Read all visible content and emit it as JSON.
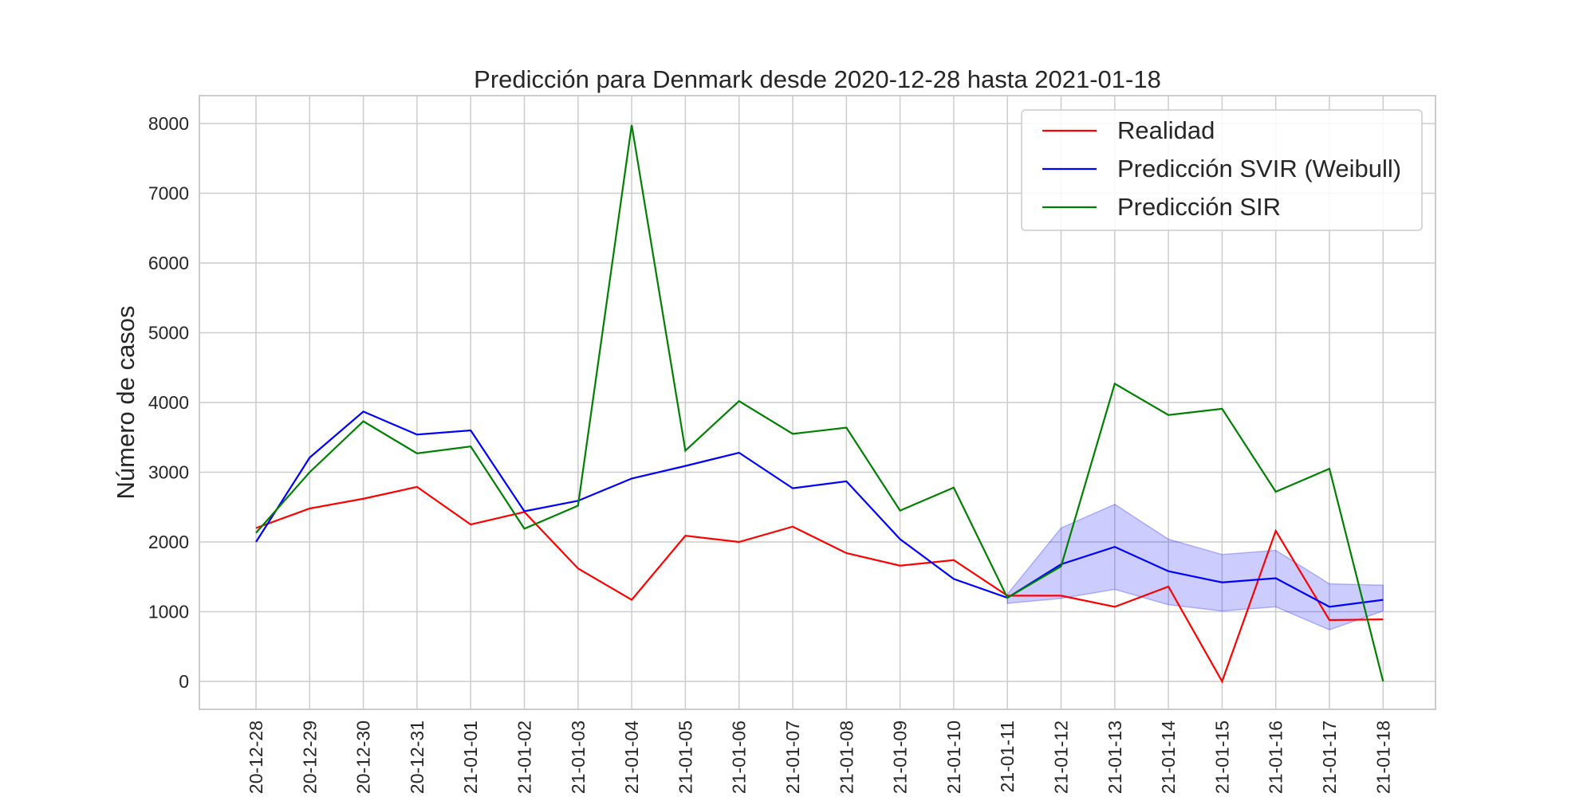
{
  "chart_data": {
    "type": "line",
    "title": "Predicción para Denmark desde 2020-12-28 hasta 2021-01-18",
    "xlabel": "",
    "ylabel": "Número de casos",
    "x": [
      "2020-12-28",
      "2020-12-29",
      "2020-12-30",
      "2020-12-31",
      "2021-01-01",
      "2021-01-02",
      "2021-01-03",
      "2021-01-04",
      "2021-01-05",
      "2021-01-06",
      "2021-01-07",
      "2021-01-08",
      "2021-01-09",
      "2021-01-10",
      "2021-01-11",
      "2021-01-12",
      "2021-01-13",
      "2021-01-14",
      "2021-01-15",
      "2021-01-16",
      "2021-01-17",
      "2021-01-18"
    ],
    "x_tick_labels": [
      "20-12-28",
      "20-12-29",
      "20-12-30",
      "20-12-31",
      "21-01-01",
      "21-01-02",
      "21-01-03",
      "21-01-04",
      "21-01-05",
      "21-01-06",
      "21-01-07",
      "21-01-08",
      "21-01-09",
      "21-01-10",
      "21-01-11",
      "21-01-12",
      "21-01-13",
      "21-01-14",
      "21-01-15",
      "21-01-16",
      "21-01-17",
      "21-01-18"
    ],
    "y_ticks": [
      0,
      1000,
      2000,
      3000,
      4000,
      5000,
      6000,
      7000,
      8000
    ],
    "ylim": [
      -400,
      8400
    ],
    "grid": true,
    "legend_position": "top-right",
    "series": [
      {
        "name": "Realidad",
        "color": "#ff0000",
        "values": [
          2200,
          2480,
          2620,
          2790,
          2250,
          2430,
          1620,
          1170,
          2090,
          2000,
          2220,
          1840,
          1660,
          1740,
          1230,
          1230,
          1070,
          1360,
          0,
          2160,
          880,
          890
        ]
      },
      {
        "name": "Predicción SVIR (Weibull)",
        "color": "#0000ff",
        "values": [
          2000,
          3210,
          3870,
          3540,
          3600,
          2440,
          2590,
          2910,
          3090,
          3280,
          2770,
          2870,
          2040,
          1470,
          1200,
          1680,
          1930,
          1580,
          1420,
          1480,
          1070,
          1170
        ]
      },
      {
        "name": "Predicción SIR",
        "color": "#008000",
        "values": [
          2130,
          3000,
          3730,
          3270,
          3370,
          2190,
          2520,
          7980,
          3310,
          4020,
          3550,
          3640,
          2450,
          2780,
          1200,
          1650,
          4270,
          3820,
          3910,
          2720,
          3050,
          0
        ]
      }
    ],
    "band": {
      "series": "Predicción SVIR (Weibull)",
      "color": "#0000ff",
      "start_index": 14,
      "lower": [
        1120,
        1190,
        1320,
        1100,
        1010,
        1070,
        740,
        1010
      ],
      "upper": [
        1250,
        2200,
        2540,
        2040,
        1820,
        1880,
        1400,
        1380
      ]
    }
  }
}
